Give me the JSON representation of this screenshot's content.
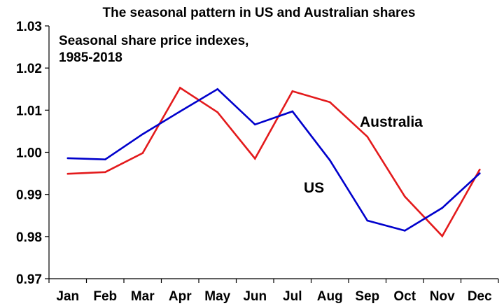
{
  "chart_data": {
    "type": "line",
    "title": "The seasonal pattern in US and Australian shares",
    "annotation_lines": [
      "Seasonal share price indexes,",
      "1985-2018"
    ],
    "categories": [
      "Jan",
      "Feb",
      "Mar",
      "Apr",
      "May",
      "Jun",
      "Jul",
      "Aug",
      "Sep",
      "Oct",
      "Nov",
      "Dec"
    ],
    "ylim": [
      0.97,
      1.03
    ],
    "yticks": [
      "0.97",
      "0.98",
      "0.99",
      "1.00",
      "1.01",
      "1.02",
      "1.03"
    ],
    "xlabel": "",
    "ylabel": "",
    "grid": false,
    "series": [
      {
        "name": "Australia",
        "color": "#e31a1c",
        "values": [
          0.9949,
          0.9953,
          0.9998,
          1.0153,
          1.0095,
          0.9985,
          1.0145,
          1.0119,
          1.0037,
          0.9895,
          0.9801,
          0.9959
        ]
      },
      {
        "name": "US",
        "color": "#0000cc",
        "values": [
          0.9986,
          0.9983,
          1.0043,
          1.0097,
          1.015,
          1.0066,
          1.0097,
          0.9981,
          0.9838,
          0.9814,
          0.9868,
          0.995
        ]
      }
    ]
  }
}
